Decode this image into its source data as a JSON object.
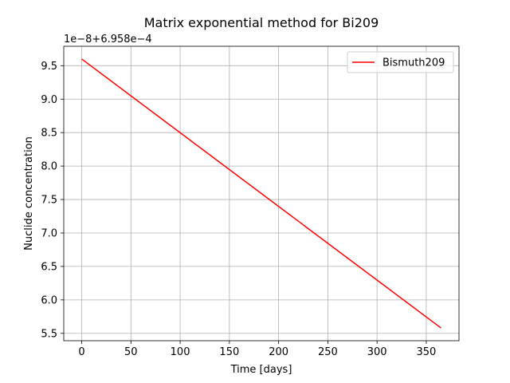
{
  "chart_data": {
    "type": "line",
    "title": "Matrix exponential method for Bi209",
    "xlabel": "Time [days]",
    "ylabel": "Nuclide concentration",
    "offset_label": "1e−8+6.958e−4",
    "xlim": [
      -18.25,
      383.25
    ],
    "ylim": [
      5.39,
      9.79
    ],
    "x_ticks": [
      0,
      50,
      100,
      150,
      200,
      250,
      300,
      350
    ],
    "x_tick_labels": [
      "0",
      "50",
      "100",
      "150",
      "200",
      "250",
      "300",
      "350"
    ],
    "y_ticks": [
      5.5,
      6.0,
      6.5,
      7.0,
      7.5,
      8.0,
      8.5,
      9.0,
      9.5
    ],
    "y_tick_labels": [
      "5.5",
      "6.0",
      "6.5",
      "7.0",
      "7.5",
      "8.0",
      "8.5",
      "9.0",
      "9.5"
    ],
    "grid": true,
    "legend_position": "upper right",
    "series": [
      {
        "name": "Bismuth209",
        "color": "#ff0000",
        "x": [
          0,
          365
        ],
        "y": [
          9.6,
          5.58
        ]
      }
    ]
  }
}
